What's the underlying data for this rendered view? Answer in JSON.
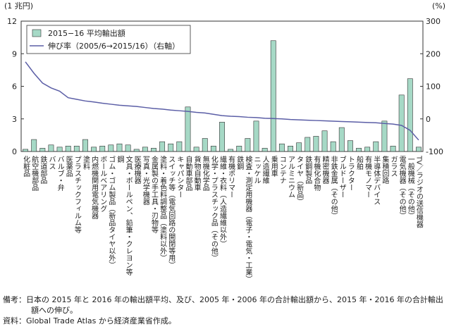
{
  "chart_data": {
    "type": "bar_line",
    "y_label": "(1 兆円)",
    "y2_label": "(%)",
    "categories": [
      "化粧品",
      "航空機部品",
      "鉄道部品",
      "バス",
      "バルブ・弁",
      "医薬品",
      "プラスチックフィルム等",
      "塗料",
      "内燃機関用電気機器",
      "ボールベアリング",
      "ゴム・ゴム製品（新品タイヤ以外）",
      "鋼",
      "文具・ボールペン、鉛筆・クレヨン等",
      "医療機器",
      "写真・光学機器",
      "金属製の手工具・刃物等",
      "塗料・着色料調整品（塗料以外）",
      "スイッチ等（電気回路の開閉等用）",
      "キャパシター",
      "自動車部品",
      "貨物自動車",
      "無機化学品",
      "化学・プラスチック品（その他）",
      "繊維・衣料（人造繊維以外）",
      "有機ポリマー",
      "鉄鋼",
      "検査・測定用機器（電子・電気・工業）",
      "ニッケル",
      "人造繊維",
      "乗用車",
      "コンテナ",
      "アルミニウム",
      "タイヤ（新品）",
      "鉄鋼製品",
      "有機化合物",
      "精密機器",
      "非鉄金属（その他）",
      "ブルドーザー",
      "トラクター",
      "船舶",
      "有機モノマー",
      "半導体デバイス",
      "集積回路",
      "ガラス",
      "電気機器（その他）",
      "一般機械（その他）",
      "TV／ラジオの送信機器"
    ],
    "series": [
      {
        "name": "2015−16 平均輸出額",
        "color": "#a6d9c6",
        "type": "bar",
        "values": [
          0.2,
          1.1,
          0.3,
          0.6,
          0.4,
          0.5,
          0.5,
          1.1,
          0.4,
          0.5,
          0.6,
          0.7,
          0.6,
          0.2,
          0.4,
          0.3,
          0.9,
          0.7,
          0.9,
          4.1,
          0.4,
          1.2,
          0.5,
          2.7,
          0.2,
          0.5,
          1.2,
          2.8,
          0.3,
          10.2,
          0.7,
          0.5,
          0.8,
          1.3,
          1.4,
          1.9,
          0.9,
          2.2,
          1.0,
          0.3,
          0.4,
          0.9,
          2.8,
          0.5,
          5.2,
          6.7,
          0.4
        ]
      },
      {
        "name": "伸び率（2005/6→2015/16）（右軸）",
        "color": "#5b5ea6",
        "type": "line",
        "axis": "y2",
        "values": [
          175,
          140,
          110,
          95,
          85,
          65,
          60,
          55,
          52,
          48,
          45,
          42,
          40,
          38,
          35,
          32,
          30,
          27,
          25,
          23,
          20,
          18,
          14,
          10,
          8,
          7,
          5,
          4,
          2,
          1,
          0,
          -2,
          -3,
          -4,
          -5,
          -6,
          -7,
          -8,
          -9,
          -10,
          -11,
          -12,
          -14,
          -16,
          -20,
          -35,
          -65
        ]
      }
    ],
    "ylim": [
      0,
      12
    ],
    "yticks": [
      0,
      3,
      6,
      9,
      12
    ],
    "y2lim": [
      -100,
      300
    ],
    "y2ticks": [
      -100,
      0,
      100,
      200,
      300
    ],
    "legend": "top-left"
  },
  "notes": [
    "備考：日本の 2015 年と 2016 年の輸出額平均、及び、2005 年・2006 年の合計輸出額から、2015 年・2016 年の合計輸出額への伸び。",
    "資料：Global Trade Atlas から経済産業省作成。"
  ]
}
